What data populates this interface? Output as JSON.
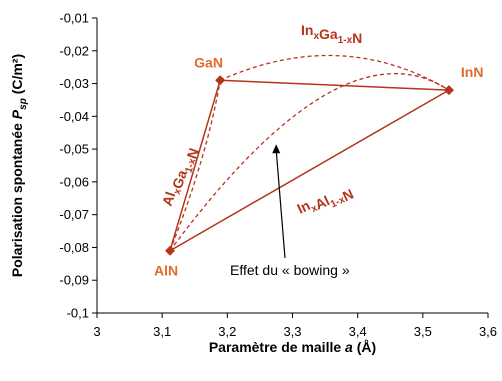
{
  "chart_data": {
    "type": "scatter",
    "xlabel": {
      "text": "Paramètre de maille ",
      "italic": "a",
      "suffix": " (Å)"
    },
    "ylabel": {
      "text": "Polarisation spontanée ",
      "italic": "P",
      "sub": "sp",
      "suffix": " (C/m²)"
    },
    "xlim": [
      3,
      3.6
    ],
    "ylim": [
      -0.1,
      -0.01
    ],
    "x_ticks": [
      3,
      3.1,
      3.2,
      3.3,
      3.4,
      3.5,
      3.6
    ],
    "x_tick_labels": [
      "3",
      "3,1",
      "3,2",
      "3,3",
      "3,4",
      "3,5",
      "3,6"
    ],
    "y_ticks": [
      -0.01,
      -0.02,
      -0.03,
      -0.04,
      -0.05,
      -0.06,
      -0.07,
      -0.08,
      -0.09,
      -0.1
    ],
    "y_tick_labels": [
      "-0,01",
      "-0,02",
      "-0,03",
      "-0,04",
      "-0,05",
      "-0,06",
      "-0,07",
      "-0,08",
      "-0,09",
      "-0,1"
    ],
    "grid": false,
    "points": [
      {
        "name": "AlN",
        "x": 3.112,
        "y": -0.081
      },
      {
        "name": "GaN",
        "x": 3.189,
        "y": -0.029
      },
      {
        "name": "InN",
        "x": 3.54,
        "y": -0.032
      }
    ],
    "linear_segments": [
      {
        "from": "AlN",
        "to": "GaN"
      },
      {
        "from": "GaN",
        "to": "InN"
      },
      {
        "from": "AlN",
        "to": "InN"
      }
    ],
    "bowing_curves": [
      {
        "from": "GaN",
        "to": "InN",
        "x_mid": 3.37,
        "y_mid": -0.0215
      },
      {
        "from": "AlN",
        "to": "InN",
        "x_mid": 3.35,
        "y_mid": -0.0335
      },
      {
        "from": "AlN",
        "to": "GaN",
        "x_mid": 3.16,
        "y_mid": -0.0535
      }
    ],
    "alloy_labels": [
      {
        "base": [
          "In",
          "Ga"
        ],
        "subs": [
          "x",
          "1-x"
        ],
        "suffix": "N"
      },
      {
        "base": [
          "In",
          "Al"
        ],
        "subs": [
          "x",
          "1-x"
        ],
        "suffix": "N"
      },
      {
        "base": [
          "Al",
          "Ga"
        ],
        "subs": [
          "x",
          "1-x"
        ],
        "suffix": "N"
      }
    ],
    "annotation": {
      "text": "Effet du « bowing »",
      "arrow_target": {
        "x": 3.275,
        "y": -0.0485
      }
    },
    "colors": {
      "series": "#b5341c",
      "label": "#e06b2b",
      "axis": "#000000"
    }
  }
}
